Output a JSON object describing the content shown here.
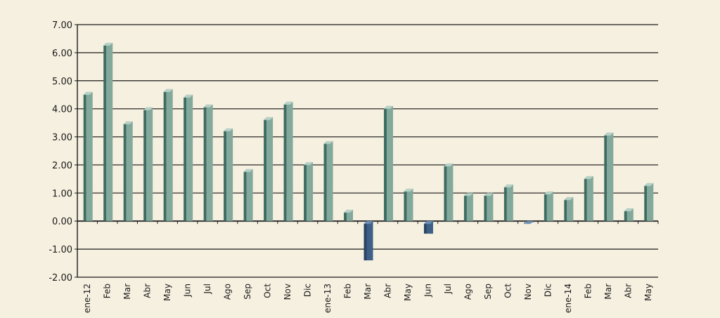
{
  "colors": {
    "background": "#f6f0e0",
    "positive_front": "#83a99c",
    "positive_side": "#3f6c61",
    "positive_top": "#b6d1c6",
    "negative_front": "#3e5f86",
    "negative_side": "#2a4463",
    "negative_top": "#6c8fb6",
    "grid": "#1a1a1a"
  },
  "chart_data": {
    "type": "bar",
    "title": "",
    "xlabel": "",
    "ylabel": "",
    "ylim": [
      -2,
      7
    ],
    "yticks": [
      "7.00",
      "6.00",
      "5.00",
      "4.00",
      "3.00",
      "2.00",
      "1.00",
      "0.00",
      "-1.00",
      "-2.00"
    ],
    "ytick_values": [
      7,
      6,
      5,
      4,
      3,
      2,
      1,
      0,
      -1,
      -2
    ],
    "grid": true,
    "categories": [
      "ene-12",
      "Feb",
      "Mar",
      "Abr",
      "May",
      "Jun",
      "Jul",
      "Ago",
      "Sep",
      "Oct",
      "Nov",
      "Dic",
      "ene-13",
      "Feb",
      "Mar",
      "Abr",
      "May",
      "Jun",
      "Jul",
      "Ago",
      "Sep",
      "Oct",
      "Nov",
      "Dic",
      "ene-14",
      "Feb",
      "Mar",
      "Abr",
      "May"
    ],
    "values": [
      4.6,
      6.35,
      3.55,
      4.05,
      4.7,
      4.5,
      4.15,
      3.3,
      1.85,
      3.7,
      4.25,
      2.1,
      2.85,
      0.4,
      -1.4,
      4.1,
      1.15,
      -0.45,
      2.05,
      1.0,
      1.0,
      1.3,
      -0.05,
      1.05,
      0.85,
      1.6,
      3.15,
      0.45,
      1.35
    ]
  }
}
